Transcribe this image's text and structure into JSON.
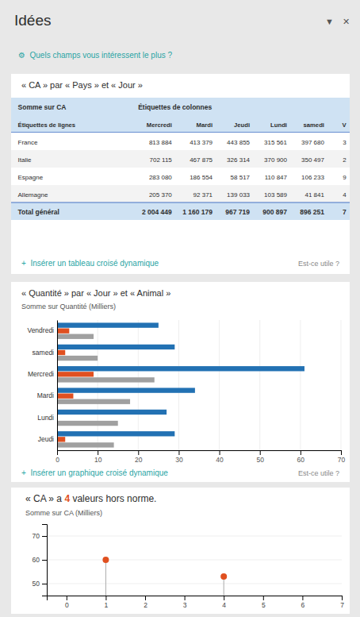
{
  "title": "Idées",
  "icons": [
    "▼",
    "✕"
  ],
  "subtitle": "⚙  Quels champs vous intéressent le plus ?",
  "chart_data": [
    {
      "type": "table",
      "title": "« CA » par « Pays » et « Jour »",
      "header": [
        "Somme sur CA",
        "Étiquettes de colonnes"
      ],
      "columns": [
        "Étiquettes de lignes",
        "Mercredi",
        "Mardi",
        "Jeudi",
        "Lundi",
        "samedi",
        "V"
      ],
      "rows": [
        [
          "France",
          "813 884",
          "413 379",
          "443 855",
          "315 561",
          "397 680",
          "3"
        ],
        [
          "Italie",
          "702 115",
          "467 875",
          "326 314",
          "370 900",
          "350 497",
          "2"
        ],
        [
          "Espagne",
          "283 080",
          "186 554",
          "58 517",
          "110 847",
          "106 233",
          "9"
        ],
        [
          "Allemagne",
          "205 370",
          "92 371",
          "139 033",
          "103 589",
          "41 841",
          "4"
        ]
      ],
      "total": [
        "Total général",
        "2 004 449",
        "1 160 179",
        "967 719",
        "900 897",
        "896 251",
        "7"
      ],
      "annotations": [
        "+  Insérer un tableau croisé dynamique",
        "Est-ce utile ?"
      ]
    },
    {
      "type": "bar",
      "orientation": "horizontal",
      "title": "« Quantité » par « Jour » et « Animal »",
      "subtitle": "Somme sur Quantité (Milliers)",
      "categories": [
        "Jeudi",
        "Lundi",
        "Mardi",
        "Mercredi",
        "samedi",
        "Vendredi"
      ],
      "series": [
        {
          "color": "#2271b3",
          "values": [
            29,
            27,
            34,
            61,
            29,
            25
          ]
        },
        {
          "color": "#e05020",
          "values": [
            2,
            0,
            4,
            9,
            2,
            3
          ]
        },
        {
          "color": "#a0a0a0",
          "values": [
            14,
            15,
            18,
            24,
            10,
            9
          ]
        }
      ],
      "xlim": [
        0,
        70
      ],
      "xticks": [
        0,
        10,
        20,
        30,
        40,
        50,
        60,
        70
      ],
      "grid": true,
      "annotations": [
        "+  Insérer un graphique croisé dynamique",
        "Est-ce utile ?"
      ]
    },
    {
      "type": "lollipop",
      "title_parts": [
        {
          "text": "« CA » a "
        },
        {
          "text": "4",
          "color": "#e05020"
        },
        {
          "text": " valeurs hors norme."
        }
      ],
      "subtitle": "Somme sur CA (Milliers)",
      "x": [
        1,
        4
      ],
      "values": [
        60,
        53
      ],
      "color": "#e05020",
      "xlim": [
        -0.5,
        7
      ],
      "xticks": [
        0,
        1,
        2,
        3,
        4,
        5,
        6,
        7
      ],
      "ylim": [
        45,
        75
      ],
      "yticks": [
        50,
        60,
        70
      ],
      "grid": true
    }
  ]
}
